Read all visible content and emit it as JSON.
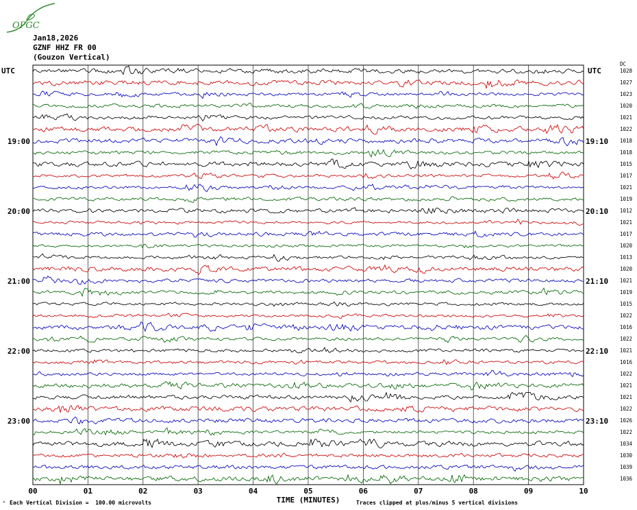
{
  "logo": {
    "text": "OPGC",
    "color": "#2e8b2e"
  },
  "header": {
    "date": "Jan18,2026",
    "station": "GZNF HHZ FR 00",
    "location": "(Gouzon Vertical)"
  },
  "axes": {
    "left_axis_title": "UTC",
    "right_axis_title": "UTC",
    "dc_header": "DC",
    "x_title": "TIME (MINUTES)",
    "x_ticks": [
      "00",
      "01",
      "02",
      "03",
      "04",
      "05",
      "06",
      "07",
      "08",
      "09",
      "10"
    ]
  },
  "footer": {
    "marker": "^",
    "left": "Each Vertical Division =  100.00 microvolts",
    "right": "Traces clipped at plus/minus 5 vertical divisions"
  },
  "chart_data": {
    "type": "line",
    "subtype": "helicorder-seismogram",
    "title": "GZNF HHZ FR 00 (Gouzon Vertical) Jan18,2026",
    "xlabel": "TIME (MINUTES)",
    "x_range_minutes": [
      0,
      10
    ],
    "minutes_per_trace": 10,
    "grid": "vertical-minute-lines",
    "color_cycle": [
      "#000000",
      "#cc0000",
      "#0000bb",
      "#006600"
    ],
    "left_time_labels": [
      {
        "row": 6,
        "label": "19:00"
      },
      {
        "row": 12,
        "label": "20:00"
      },
      {
        "row": 18,
        "label": "21:00"
      },
      {
        "row": 24,
        "label": "22:00"
      },
      {
        "row": 30,
        "label": "23:00"
      }
    ],
    "right_time_labels": [
      {
        "row": 6,
        "label": "19:10"
      },
      {
        "row": 12,
        "label": "20:10"
      },
      {
        "row": 18,
        "label": "21:10"
      },
      {
        "row": 24,
        "label": "22:10"
      },
      {
        "row": 30,
        "label": "23:10"
      }
    ],
    "traces": [
      {
        "dc": 1028
      },
      {
        "dc": 1027
      },
      {
        "dc": 1023
      },
      {
        "dc": 1020
      },
      {
        "dc": 1021
      },
      {
        "dc": 1022
      },
      {
        "dc": 1018
      },
      {
        "dc": 1018
      },
      {
        "dc": 1015
      },
      {
        "dc": 1017
      },
      {
        "dc": 1021
      },
      {
        "dc": 1019
      },
      {
        "dc": 1012
      },
      {
        "dc": 1021
      },
      {
        "dc": 1017
      },
      {
        "dc": 1020
      },
      {
        "dc": 1013
      },
      {
        "dc": 1020
      },
      {
        "dc": 1021
      },
      {
        "dc": 1019
      },
      {
        "dc": 1015
      },
      {
        "dc": 1022
      },
      {
        "dc": 1016
      },
      {
        "dc": 1022
      },
      {
        "dc": 1021
      },
      {
        "dc": 1016
      },
      {
        "dc": 1022
      },
      {
        "dc": 1021
      },
      {
        "dc": 1021
      },
      {
        "dc": 1022
      },
      {
        "dc": 1026
      },
      {
        "dc": 1022
      },
      {
        "dc": 1034
      },
      {
        "dc": 1030
      },
      {
        "dc": 1039
      },
      {
        "dc": 1036
      }
    ],
    "trace_content_note": "ambient seismic background noise, no labeled events",
    "amplitude_scale": "100.00 microvolts per vertical division, clipped at +/-5 divisions"
  }
}
